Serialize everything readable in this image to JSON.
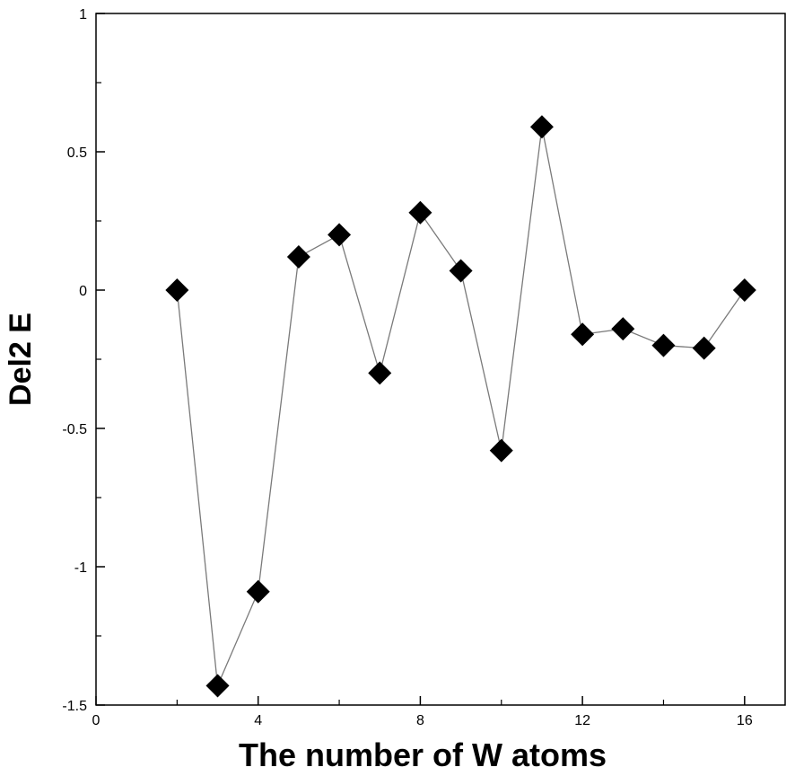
{
  "chart_data": {
    "type": "line",
    "title": "",
    "xlabel": "The number of W atoms",
    "ylabel": "Del2 E",
    "xlim": [
      0,
      17
    ],
    "ylim": [
      -1.5,
      1
    ],
    "x_ticks": [
      0,
      4,
      8,
      12,
      16
    ],
    "x_tick_labels": [
      "0",
      "4",
      "8",
      "12",
      "16"
    ],
    "x_minor_ticks": [
      2,
      6,
      10,
      14
    ],
    "y_ticks": [
      -1.5,
      -1,
      -0.5,
      0,
      0.5,
      1
    ],
    "y_tick_labels": [
      "-1.5",
      "-1",
      "-0.5",
      "0",
      "0.5",
      "1"
    ],
    "y_minor_ticks": [
      -1.25,
      -0.75,
      -0.25,
      0.25,
      0.75
    ],
    "grid": false,
    "marker": "diamond",
    "marker_color": "#000000",
    "line_color": "#7a7a7a",
    "series": [
      {
        "x": [
          2,
          3,
          4,
          5,
          6,
          7,
          8,
          9,
          10,
          11,
          12,
          13,
          14,
          15,
          16
        ],
        "values": [
          0,
          -1.43,
          -1.09,
          0.12,
          0.2,
          -0.3,
          0.28,
          0.07,
          -0.58,
          0.59,
          -0.16,
          -0.14,
          -0.2,
          -0.21,
          0
        ]
      }
    ]
  }
}
